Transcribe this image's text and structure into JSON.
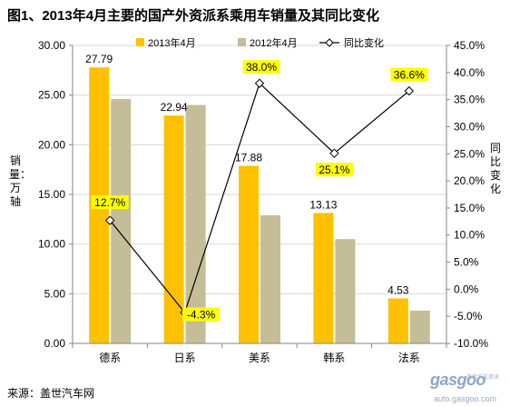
{
  "title": "图1、2013年4月主要的国产外资派系乘用车销量及其同比变化",
  "source": "来源：盖世汽车网",
  "watermark": {
    "brand": "gasgoo",
    "site": "auto.gasgoo.com",
    "tagline": "盖世汽车资讯"
  },
  "colors": {
    "series_2013": "#FFC000",
    "series_2012": "#C4BD97",
    "line": "#000000",
    "label_bg": "#FFFF00",
    "grid": "#D9D9D9",
    "axis": "#868686"
  },
  "chart_data": {
    "type": "bar",
    "title": "图1、2013年4月主要的国产外资派系乘用车销量及其同比变化",
    "categories": [
      "德系",
      "日系",
      "美系",
      "韩系",
      "法系"
    ],
    "series": [
      {
        "name": "2013年4月",
        "type": "bar",
        "axis": "left",
        "values": [
          27.79,
          22.94,
          17.88,
          13.13,
          4.53
        ],
        "labels": [
          "27.79",
          "22.94",
          "17.88",
          "13.13",
          "4.53"
        ]
      },
      {
        "name": "2012年4月",
        "type": "bar",
        "axis": "left",
        "values": [
          24.6,
          24.0,
          12.9,
          10.5,
          3.3
        ]
      },
      {
        "name": "同比变化",
        "type": "line",
        "axis": "right",
        "values": [
          12.7,
          -4.3,
          38.0,
          25.1,
          36.6
        ],
        "labels": [
          "12.7%",
          "-4.3%",
          "38.0%",
          "25.1%",
          "36.6%"
        ]
      }
    ],
    "ylabel": "销量：万轴",
    "y2label": "同比变化",
    "ylim": [
      0,
      30
    ],
    "y2lim": [
      -10,
      45
    ],
    "yticks": [
      "0.00",
      "5.00",
      "10.00",
      "15.00",
      "20.00",
      "25.00",
      "30.00"
    ],
    "y2ticks": [
      "-10.0%",
      "-5.0%",
      "0.0%",
      "5.0%",
      "10.0%",
      "15.0%",
      "20.0%",
      "25.0%",
      "30.0%",
      "35.0%",
      "40.0%",
      "45.0%"
    ],
    "legend_position": "top",
    "grid": "horizontal"
  }
}
